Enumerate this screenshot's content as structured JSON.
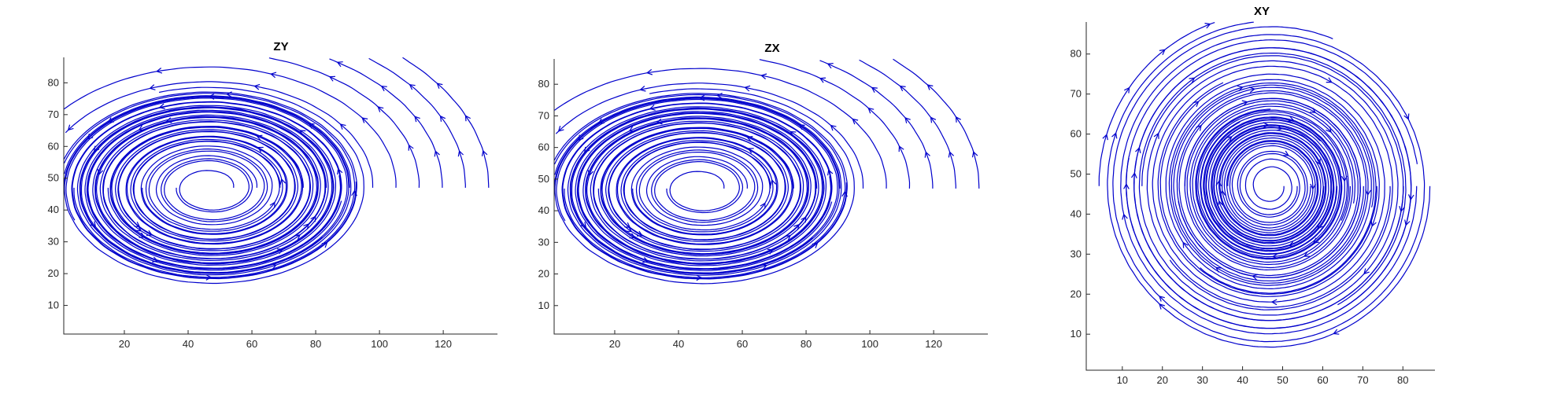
{
  "chart_data": [
    {
      "type": "streamline",
      "title": "ZY",
      "xlabel": "",
      "ylabel": "",
      "xlim": [
        1,
        137
      ],
      "ylim": [
        1,
        88
      ],
      "xticks": [
        20,
        40,
        60,
        80,
        100,
        120
      ],
      "yticks": [
        10,
        20,
        30,
        40,
        50,
        60,
        70,
        80
      ],
      "flow_center": [
        47,
        47
      ],
      "rotation": "counterclockwise",
      "line_color": "#0000cc"
    },
    {
      "type": "streamline",
      "title": "ZX",
      "xlabel": "",
      "ylabel": "",
      "xlim": [
        1,
        137
      ],
      "ylim": [
        1,
        88
      ],
      "xticks": [
        20,
        40,
        60,
        80,
        100,
        120
      ],
      "yticks": [
        10,
        20,
        30,
        40,
        50,
        60,
        70,
        80
      ],
      "flow_center": [
        47,
        47
      ],
      "rotation": "counterclockwise",
      "line_color": "#0000cc"
    },
    {
      "type": "streamline",
      "title": "XY",
      "xlabel": "",
      "ylabel": "",
      "xlim": [
        1,
        88
      ],
      "ylim": [
        1,
        88
      ],
      "xticks": [
        10,
        20,
        30,
        40,
        50,
        60,
        70,
        80
      ],
      "yticks": [
        10,
        20,
        30,
        40,
        50,
        60,
        70,
        80
      ],
      "flow_center": [
        47,
        47
      ],
      "rotation": "clockwise",
      "line_color": "#0000cc"
    }
  ]
}
